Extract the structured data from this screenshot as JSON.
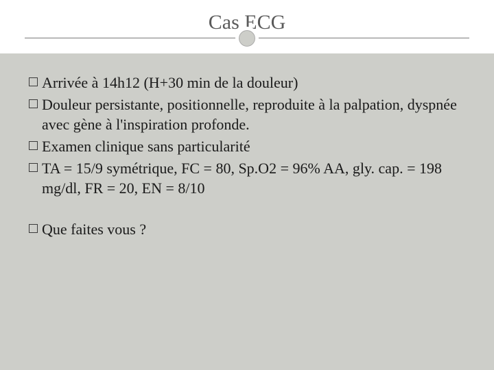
{
  "slide": {
    "title": "Cas ECG",
    "bullets_group1": [
      "Arrivée à 14h12 (H+30 min de la douleur)",
      "Douleur persistante, positionnelle, reproduite à la palpation, dyspnée avec gène à l'inspiration profonde.",
      "Examen clinique sans particularité",
      "TA = 15/9 symétrique, FC = 80, Sp.O2 = 96% AA,  gly. cap. = 198 mg/dl, FR = 20, EN = 8/10"
    ],
    "bullets_group2": [
      "Que faites vous ?"
    ]
  },
  "style": {
    "background_color": "#cdcec9",
    "title_bg": "#ffffff",
    "title_color": "#5a5a5a",
    "title_fontsize": 30,
    "body_fontsize": 22,
    "body_color": "#1a1a1a",
    "bullet_marker": "hollow-square",
    "divider_color": "#7a7a7a",
    "ring_border_color": "#ffffff",
    "font_family": "Georgia"
  }
}
